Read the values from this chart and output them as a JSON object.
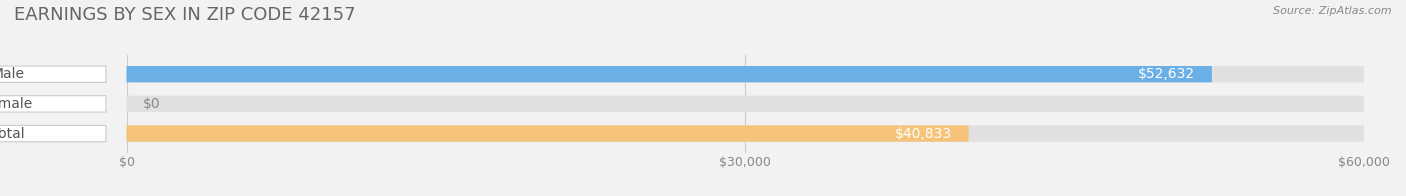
{
  "title": "EARNINGS BY SEX IN ZIP CODE 42157",
  "source": "Source: ZipAtlas.com",
  "categories": [
    "Male",
    "Female",
    "Total"
  ],
  "values": [
    52632,
    0,
    40833
  ],
  "bar_colors": [
    "#6aafe6",
    "#f4a0b5",
    "#f5c47a"
  ],
  "value_labels": [
    "$52,632",
    "$0",
    "$40,833"
  ],
  "xlim": [
    0,
    60000
  ],
  "xticks": [
    0,
    30000,
    60000
  ],
  "xtick_labels": [
    "$0",
    "$30,000",
    "$60,000"
  ],
  "title_fontsize": 13,
  "label_fontsize": 10,
  "bar_height": 0.55,
  "background_color": "#f2f2f2",
  "bar_bg_color": "#e0e0e0",
  "fig_width": 14.06,
  "fig_height": 1.96
}
